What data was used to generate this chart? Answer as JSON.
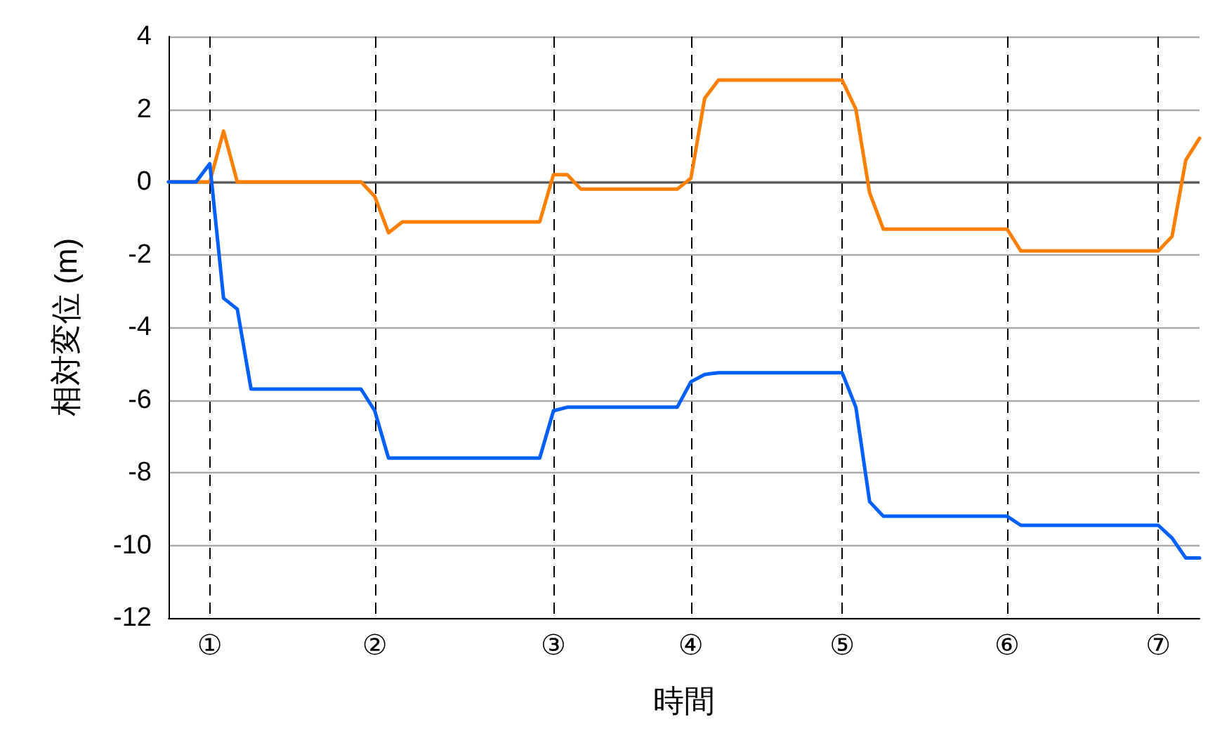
{
  "chart_data": {
    "type": "line",
    "xlabel": "時間",
    "ylabel": "相対変位 (m)",
    "categories": [
      null,
      null,
      null,
      "①",
      null,
      null,
      null,
      null,
      null,
      null,
      null,
      null,
      null,
      null,
      null,
      "②",
      null,
      null,
      null,
      null,
      null,
      null,
      null,
      null,
      null,
      null,
      null,
      null,
      "③",
      null,
      null,
      null,
      null,
      null,
      null,
      null,
      null,
      null,
      "④",
      null,
      null,
      null,
      null,
      null,
      null,
      null,
      null,
      null,
      null,
      "⑤",
      null,
      null,
      null,
      null,
      null,
      null,
      null,
      null,
      null,
      null,
      null,
      "⑥",
      null,
      null,
      null,
      null,
      null,
      null,
      null,
      null,
      null,
      null,
      "⑦",
      null,
      null,
      null
    ],
    "ylim": [
      -12,
      4
    ],
    "yticks": [
      -12,
      -10,
      -8,
      -6,
      -4,
      -2,
      0,
      2,
      4
    ],
    "grid": true,
    "marker": "none",
    "line_style": "solid",
    "ref_lines": [
      {
        "axis": "y",
        "value": 0,
        "color": "#555555",
        "line_style": "solid"
      }
    ],
    "series": [
      {
        "color": "#ff8000",
        "values": [
          0,
          0,
          0,
          0,
          1.4,
          0,
          0,
          0,
          0,
          0,
          0,
          0,
          0,
          0,
          0,
          -0.4,
          -1.4,
          -1.1,
          -1.1,
          -1.1,
          -1.1,
          -1.1,
          -1.1,
          -1.1,
          -1.1,
          -1.1,
          -1.1,
          -1.1,
          0.2,
          0.2,
          -0.2,
          -0.2,
          -0.2,
          -0.2,
          -0.2,
          -0.2,
          -0.2,
          -0.2,
          0.1,
          2.3,
          2.8,
          2.8,
          2.8,
          2.8,
          2.8,
          2.8,
          2.8,
          2.8,
          2.8,
          2.8,
          2.0,
          -0.3,
          -1.3,
          -1.3,
          -1.3,
          -1.3,
          -1.3,
          -1.3,
          -1.3,
          -1.3,
          -1.3,
          -1.3,
          -1.9,
          -1.9,
          -1.9,
          -1.9,
          -1.9,
          -1.9,
          -1.9,
          -1.9,
          -1.9,
          -1.9,
          -1.9,
          -1.5,
          0.6,
          1.2
        ]
      },
      {
        "color": "#0060ff",
        "values": [
          0,
          0,
          0,
          0.5,
          -3.2,
          -3.5,
          -5.7,
          -5.7,
          -5.7,
          -5.7,
          -5.7,
          -5.7,
          -5.7,
          -5.7,
          -5.7,
          -6.3,
          -7.6,
          -7.6,
          -7.6,
          -7.6,
          -7.6,
          -7.6,
          -7.6,
          -7.6,
          -7.6,
          -7.6,
          -7.6,
          -7.6,
          -6.3,
          -6.2,
          -6.2,
          -6.2,
          -6.2,
          -6.2,
          -6.2,
          -6.2,
          -6.2,
          -6.2,
          -5.5,
          -5.3,
          -5.25,
          -5.25,
          -5.25,
          -5.25,
          -5.25,
          -5.25,
          -5.25,
          -5.25,
          -5.25,
          -5.25,
          -6.2,
          -8.8,
          -9.2,
          -9.2,
          -9.2,
          -9.2,
          -9.2,
          -9.2,
          -9.2,
          -9.2,
          -9.2,
          -9.2,
          -9.45,
          -9.45,
          -9.45,
          -9.45,
          -9.45,
          -9.45,
          -9.45,
          -9.45,
          -9.45,
          -9.45,
          -9.45,
          -9.8,
          -10.35,
          -10.35
        ]
      }
    ]
  }
}
